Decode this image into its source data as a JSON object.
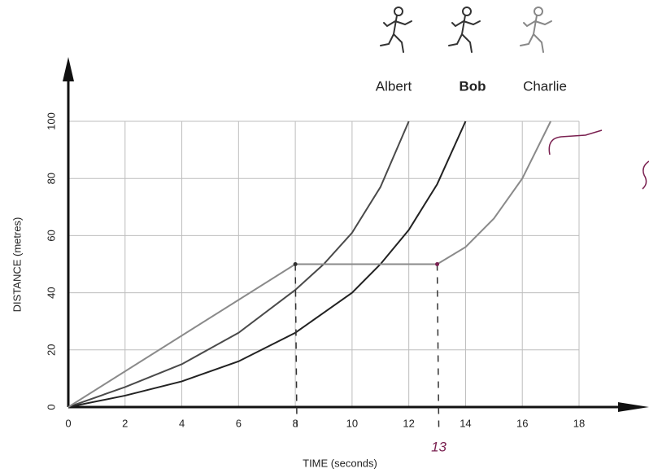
{
  "chart_data": {
    "type": "line",
    "x_label": "TIME (seconds)",
    "y_label": "DISTANCE (metres)",
    "xlim": [
      0,
      18
    ],
    "xticks": [
      0,
      2,
      4,
      6,
      8,
      10,
      12,
      14,
      16,
      18
    ],
    "ylim": [
      0,
      100
    ],
    "yticks": [
      0,
      20,
      40,
      60,
      80,
      100
    ],
    "grid": true,
    "series": [
      {
        "name": "Albert",
        "color": "#4a4a4a",
        "x": [
          0,
          2,
          4,
          6,
          8,
          9,
          10,
          11,
          12
        ],
        "values": [
          0,
          7,
          15,
          26,
          41,
          50,
          61,
          77,
          100
        ]
      },
      {
        "name": "Bob",
        "color": "#222222",
        "x": [
          0,
          2,
          4,
          6,
          8,
          10,
          11,
          12,
          13,
          14
        ],
        "values": [
          0,
          4,
          9,
          16,
          26,
          40,
          50,
          62,
          78,
          100
        ]
      },
      {
        "name": "Charlie",
        "color": "#8a8a8a",
        "x": [
          0,
          8,
          13,
          14,
          15,
          16,
          17
        ],
        "values": [
          0,
          50,
          50,
          56,
          66,
          80,
          100
        ]
      }
    ],
    "annotation": "13"
  }
}
